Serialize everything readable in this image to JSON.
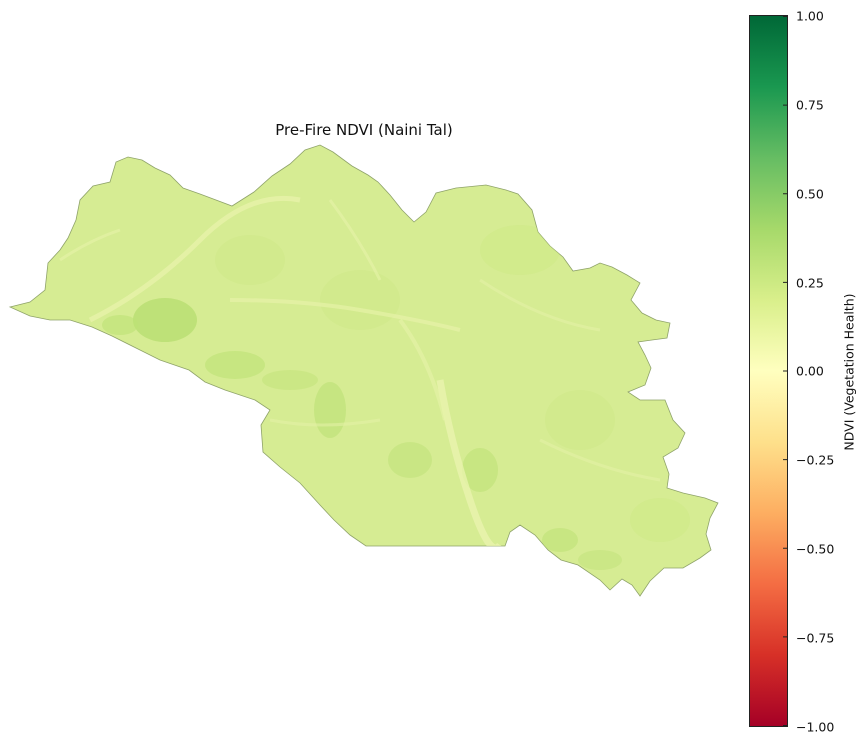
{
  "map": {
    "title": "Pre-Fire NDVI (Naini Tal)",
    "region": "Naini Tal"
  },
  "colorbar": {
    "label": "NDVI (Vegetation Health)",
    "min": -1.0,
    "max": 1.0,
    "colormap": "RdYlGn",
    "ticks": [
      "1.00",
      "0.75",
      "0.50",
      "0.25",
      "0.00",
      "−0.25",
      "−0.50",
      "−0.75",
      "−1.00"
    ],
    "stops": [
      "#006837",
      "#1a9850",
      "#66bd63",
      "#a6d96a",
      "#d9ef8b",
      "#ffffbf",
      "#fee08b",
      "#fdae61",
      "#f46d43",
      "#d73027",
      "#a50026"
    ]
  },
  "colors": {
    "land_fill": "#d6ec93",
    "land_dark": "#b6de6f",
    "land_light": "#e9f4ac",
    "boundary": "#8fa36a"
  }
}
